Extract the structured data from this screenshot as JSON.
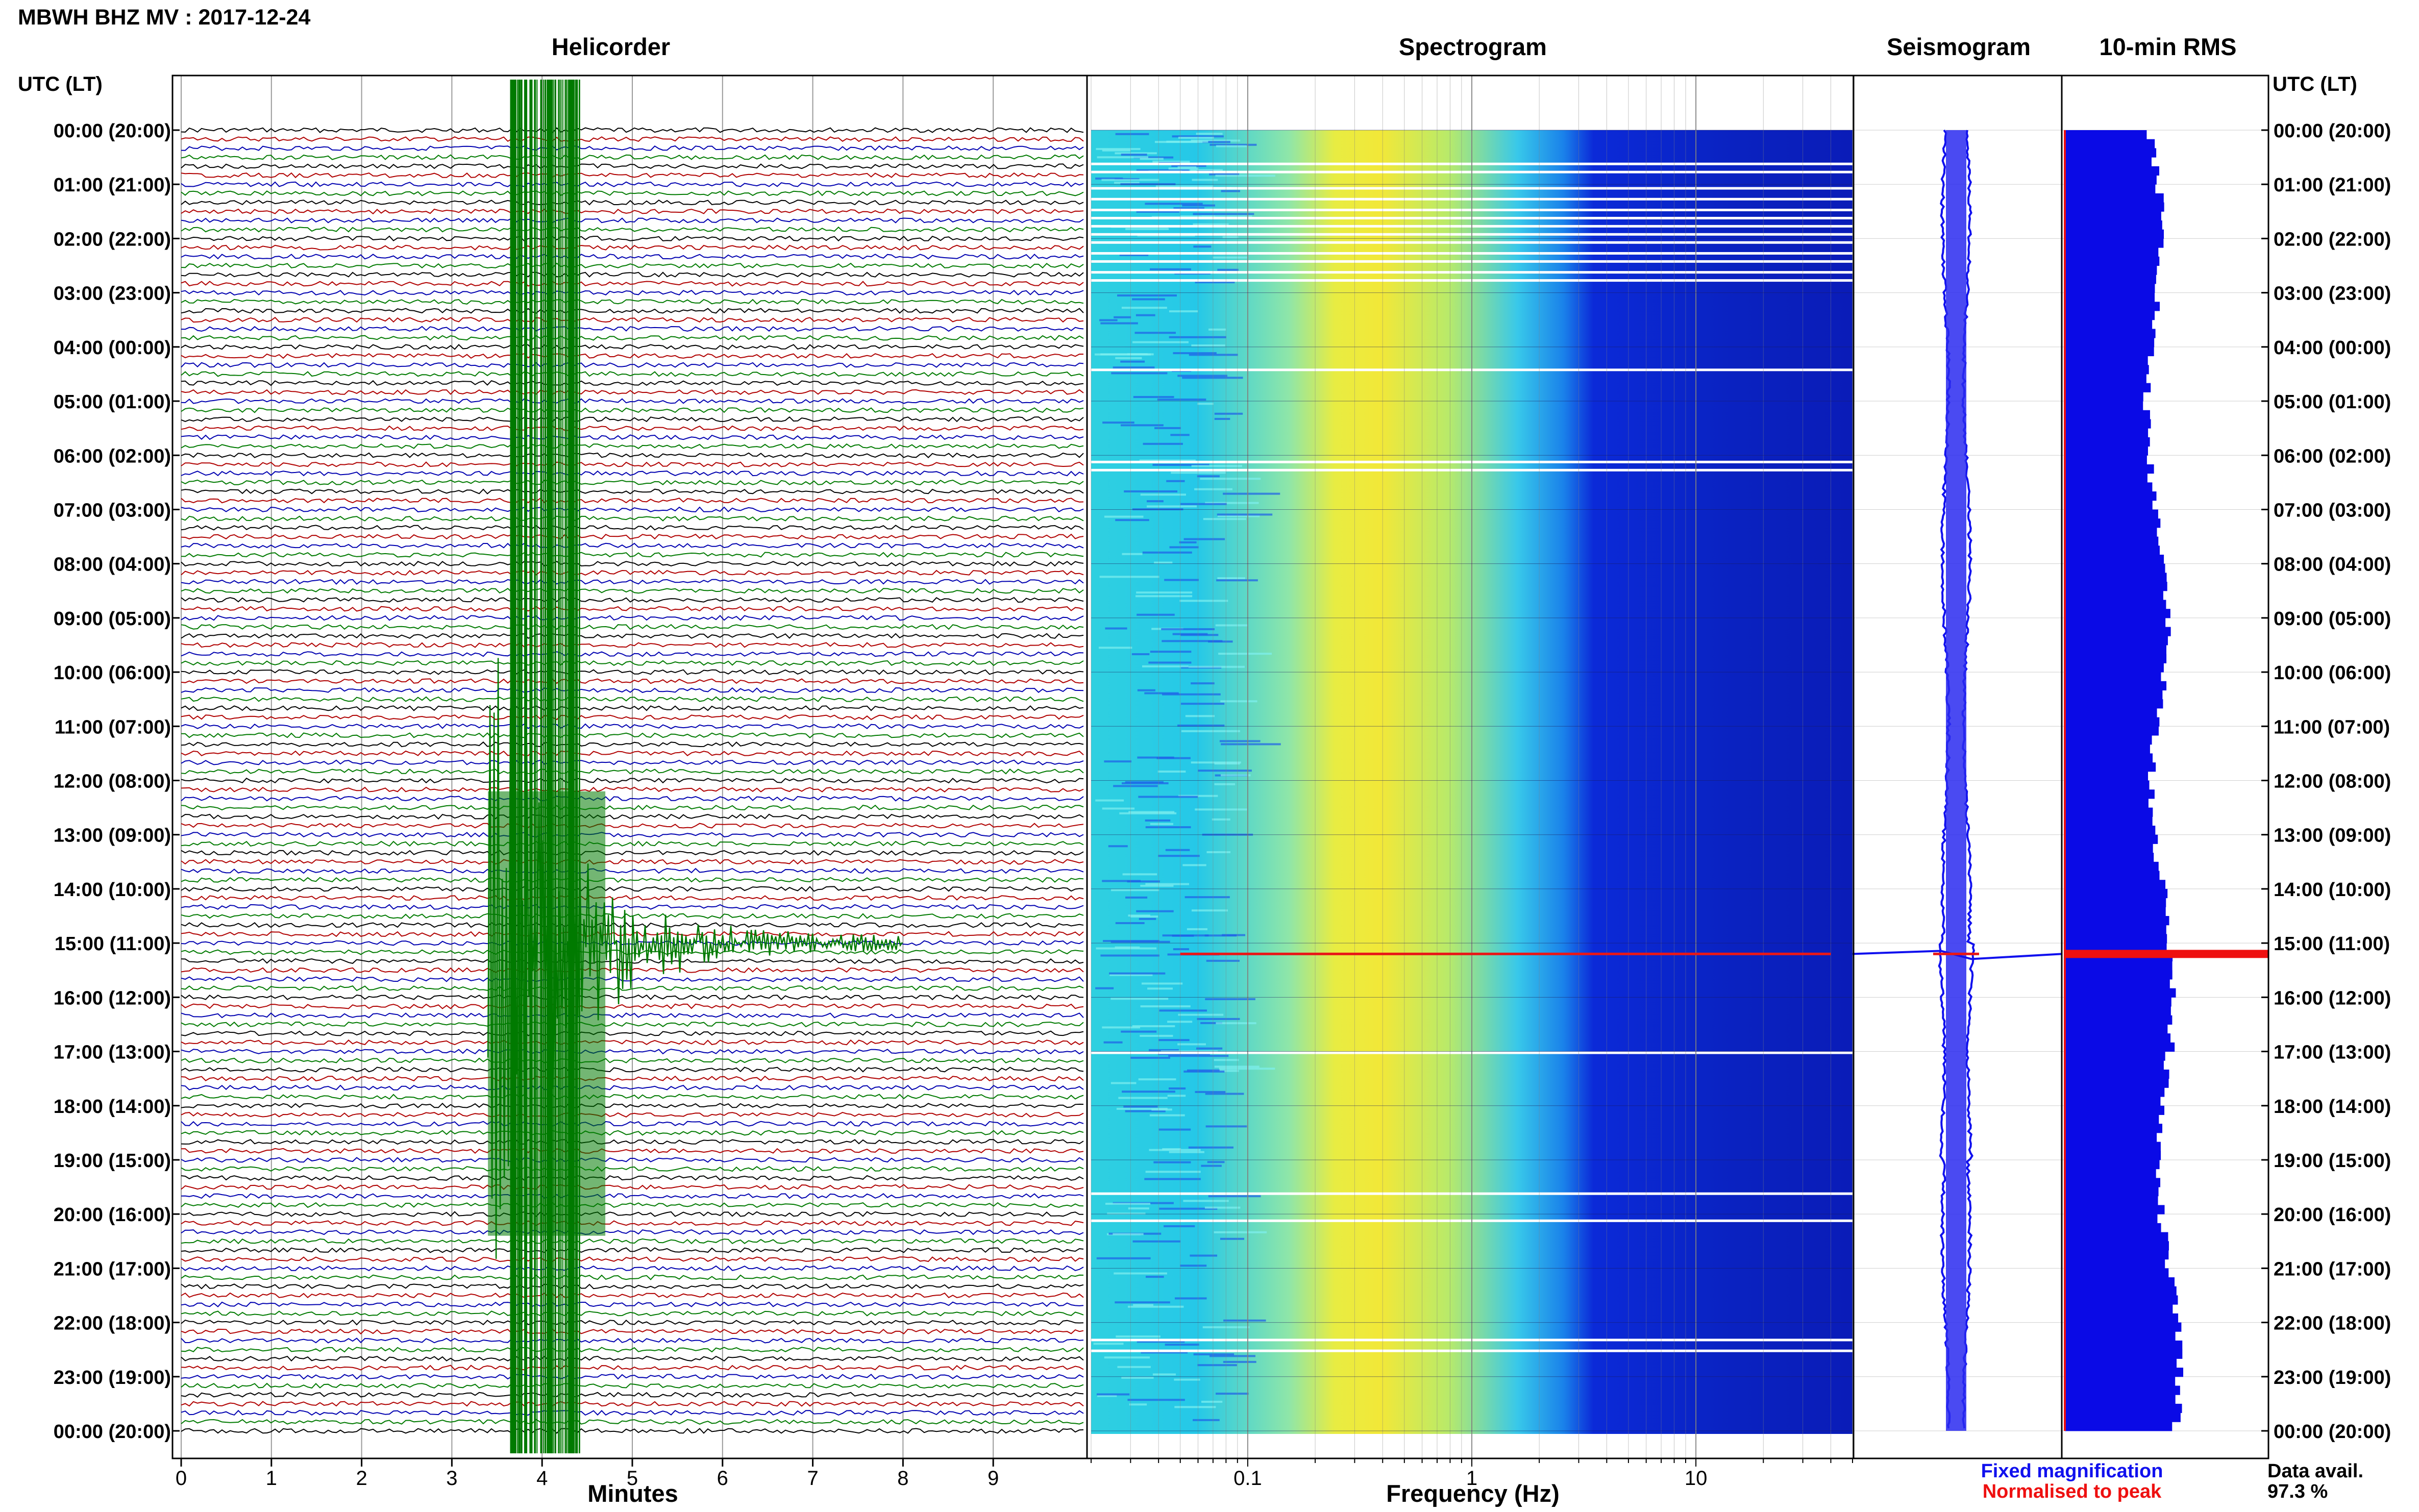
{
  "header": {
    "station_title": "MBWH BHZ MV : 2017-12-24",
    "time_axis_label": "UTC (LT)"
  },
  "panels": {
    "helicorder": "Helicorder",
    "spectrogram": "Spectrogram",
    "seismogram": "Seismogram",
    "rms": "10-min RMS"
  },
  "footer": {
    "fixed_magnification": "Fixed magnification",
    "normalised_to_peak": "Normalised to peak",
    "data_avail_label": "Data avail.",
    "data_avail_value": "97.3 %"
  },
  "colors": {
    "fixed_magnification": "#1010ee",
    "normalised_to_peak": "#ee1010",
    "trace_colors": [
      "#000000",
      "#b00000",
      "#0000b0",
      "#007a00"
    ],
    "event_trace": "#007a00",
    "rms_bar": "#0a0ae6"
  },
  "chart_data": [
    {
      "type": "helicorder",
      "title": "Helicorder",
      "xlabel": "Minutes",
      "ylabel": "UTC (LT)",
      "x_ticks": [
        0,
        1,
        2,
        3,
        4,
        5,
        6,
        7,
        8,
        9
      ],
      "xlim": [
        0,
        10
      ],
      "hour_labels": [
        "00:00 (20:00)",
        "01:00 (21:00)",
        "02:00 (22:00)",
        "03:00 (23:00)",
        "04:00 (00:00)",
        "05:00 (01:00)",
        "06:00 (02:00)",
        "07:00 (03:00)",
        "08:00 (04:00)",
        "09:00 (05:00)",
        "10:00 (06:00)",
        "11:00 (07:00)",
        "12:00 (08:00)",
        "13:00 (09:00)",
        "14:00 (10:00)",
        "15:00 (11:00)",
        "16:00 (12:00)",
        "17:00 (13:00)",
        "18:00 (14:00)",
        "19:00 (15:00)",
        "20:00 (16:00)",
        "21:00 (17:00)",
        "22:00 (18:00)",
        "23:00 (19:00)",
        "00:00 (20:00)"
      ],
      "lines_per_hour": 6,
      "event": {
        "utc_hour": 15.0,
        "minute": 3.4,
        "coda_end_minute": 8.0
      }
    },
    {
      "type": "heatmap",
      "title": "Spectrogram",
      "xlabel": "Frequency (Hz)",
      "x_scale": "log",
      "x_ticks": [
        0.1,
        1,
        10
      ],
      "xlim": [
        0.02,
        50
      ],
      "peak_band_hz": [
        0.15,
        0.5
      ],
      "event_line_utc_hour": 15.2
    },
    {
      "type": "line",
      "title": "Seismogram",
      "event_utc_hour": 15.2
    },
    {
      "type": "bar",
      "title": "10-min RMS",
      "peak_utc_hour": 15.2
    }
  ]
}
